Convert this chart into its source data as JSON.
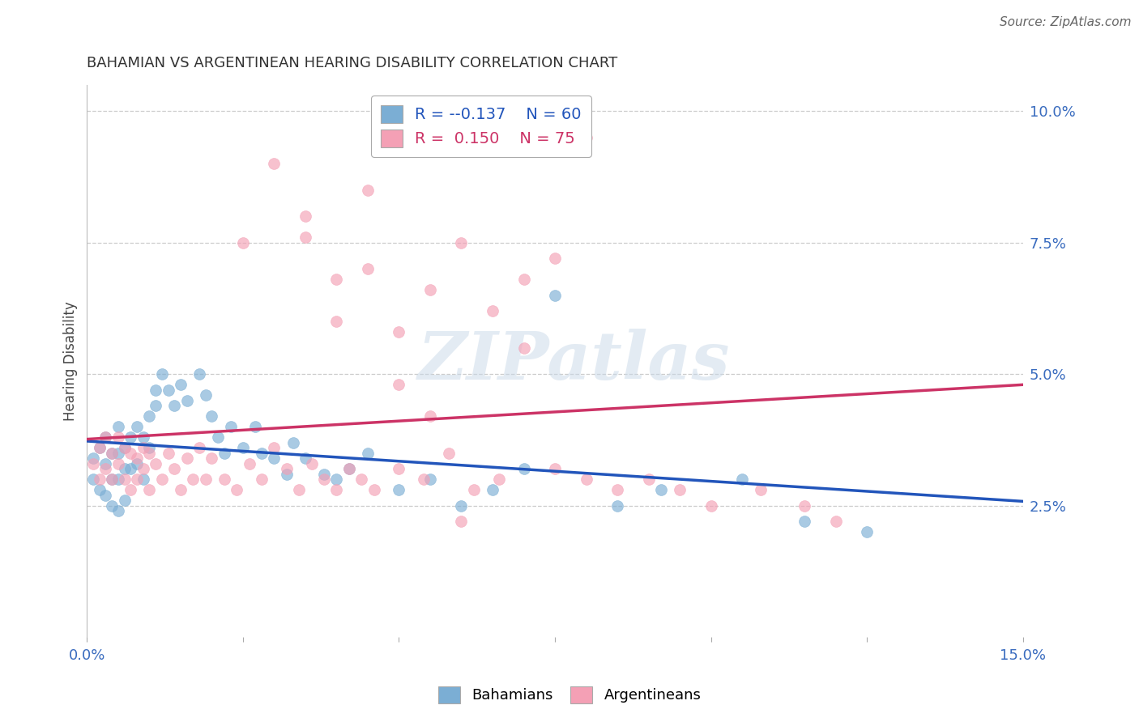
{
  "title": "BAHAMIAN VS ARGENTINEAN HEARING DISABILITY CORRELATION CHART",
  "source_text": "Source: ZipAtlas.com",
  "ylabel": "Hearing Disability",
  "xlim": [
    0.0,
    0.15
  ],
  "ylim": [
    0.0,
    0.105
  ],
  "ytick_positions": [
    0.025,
    0.05,
    0.075,
    0.1
  ],
  "ytick_labels": [
    "2.5%",
    "5.0%",
    "7.5%",
    "10.0%"
  ],
  "xtick_positions": [
    0.0,
    0.025,
    0.05,
    0.075,
    0.1,
    0.125,
    0.15
  ],
  "xtick_labels": [
    "0.0%",
    "",
    "",
    "",
    "",
    "",
    "15.0%"
  ],
  "grid_color": "#cccccc",
  "background_color": "#ffffff",
  "watermark_text": "ZIPatlas",
  "blue_color": "#7baed4",
  "pink_color": "#f4a0b5",
  "blue_line_color": "#2255bb",
  "pink_line_color": "#cc3366",
  "legend_r1": "-0.137",
  "legend_n1": "60",
  "legend_r2": "0.150",
  "legend_n2": "75",
  "blue_scatter_x": [
    0.001,
    0.001,
    0.002,
    0.002,
    0.003,
    0.003,
    0.003,
    0.004,
    0.004,
    0.004,
    0.005,
    0.005,
    0.005,
    0.005,
    0.006,
    0.006,
    0.006,
    0.007,
    0.007,
    0.008,
    0.008,
    0.009,
    0.009,
    0.01,
    0.01,
    0.011,
    0.011,
    0.012,
    0.013,
    0.014,
    0.015,
    0.016,
    0.018,
    0.019,
    0.02,
    0.021,
    0.022,
    0.023,
    0.025,
    0.027,
    0.028,
    0.03,
    0.032,
    0.033,
    0.035,
    0.038,
    0.04,
    0.042,
    0.045,
    0.05,
    0.055,
    0.06,
    0.065,
    0.07,
    0.075,
    0.085,
    0.092,
    0.105,
    0.115,
    0.125
  ],
  "blue_scatter_y": [
    0.034,
    0.03,
    0.036,
    0.028,
    0.038,
    0.033,
    0.027,
    0.035,
    0.03,
    0.025,
    0.04,
    0.035,
    0.03,
    0.024,
    0.036,
    0.032,
    0.026,
    0.038,
    0.032,
    0.04,
    0.033,
    0.038,
    0.03,
    0.036,
    0.042,
    0.047,
    0.044,
    0.05,
    0.047,
    0.044,
    0.048,
    0.045,
    0.05,
    0.046,
    0.042,
    0.038,
    0.035,
    0.04,
    0.036,
    0.04,
    0.035,
    0.034,
    0.031,
    0.037,
    0.034,
    0.031,
    0.03,
    0.032,
    0.035,
    0.028,
    0.03,
    0.025,
    0.028,
    0.032,
    0.065,
    0.025,
    0.028,
    0.03,
    0.022,
    0.02
  ],
  "pink_scatter_x": [
    0.001,
    0.002,
    0.002,
    0.003,
    0.003,
    0.004,
    0.004,
    0.005,
    0.005,
    0.006,
    0.006,
    0.007,
    0.007,
    0.008,
    0.008,
    0.009,
    0.009,
    0.01,
    0.01,
    0.011,
    0.012,
    0.013,
    0.014,
    0.015,
    0.016,
    0.017,
    0.018,
    0.019,
    0.02,
    0.022,
    0.024,
    0.026,
    0.028,
    0.03,
    0.032,
    0.034,
    0.036,
    0.038,
    0.04,
    0.042,
    0.044,
    0.046,
    0.05,
    0.054,
    0.058,
    0.062,
    0.066,
    0.07,
    0.075,
    0.08,
    0.085,
    0.09,
    0.095,
    0.1,
    0.108,
    0.115,
    0.12,
    0.025,
    0.035,
    0.04,
    0.045,
    0.05,
    0.055,
    0.06,
    0.065,
    0.07,
    0.075,
    0.08,
    0.03,
    0.035,
    0.04,
    0.045,
    0.05,
    0.055,
    0.06
  ],
  "pink_scatter_y": [
    0.033,
    0.036,
    0.03,
    0.038,
    0.032,
    0.035,
    0.03,
    0.038,
    0.033,
    0.036,
    0.03,
    0.035,
    0.028,
    0.034,
    0.03,
    0.036,
    0.032,
    0.035,
    0.028,
    0.033,
    0.03,
    0.035,
    0.032,
    0.028,
    0.034,
    0.03,
    0.036,
    0.03,
    0.034,
    0.03,
    0.028,
    0.033,
    0.03,
    0.036,
    0.032,
    0.028,
    0.033,
    0.03,
    0.028,
    0.032,
    0.03,
    0.028,
    0.032,
    0.03,
    0.035,
    0.028,
    0.03,
    0.055,
    0.032,
    0.03,
    0.028,
    0.03,
    0.028,
    0.025,
    0.028,
    0.025,
    0.022,
    0.075,
    0.076,
    0.068,
    0.085,
    0.058,
    0.066,
    0.075,
    0.062,
    0.068,
    0.072,
    0.095,
    0.09,
    0.08,
    0.06,
    0.07,
    0.048,
    0.042,
    0.022
  ]
}
